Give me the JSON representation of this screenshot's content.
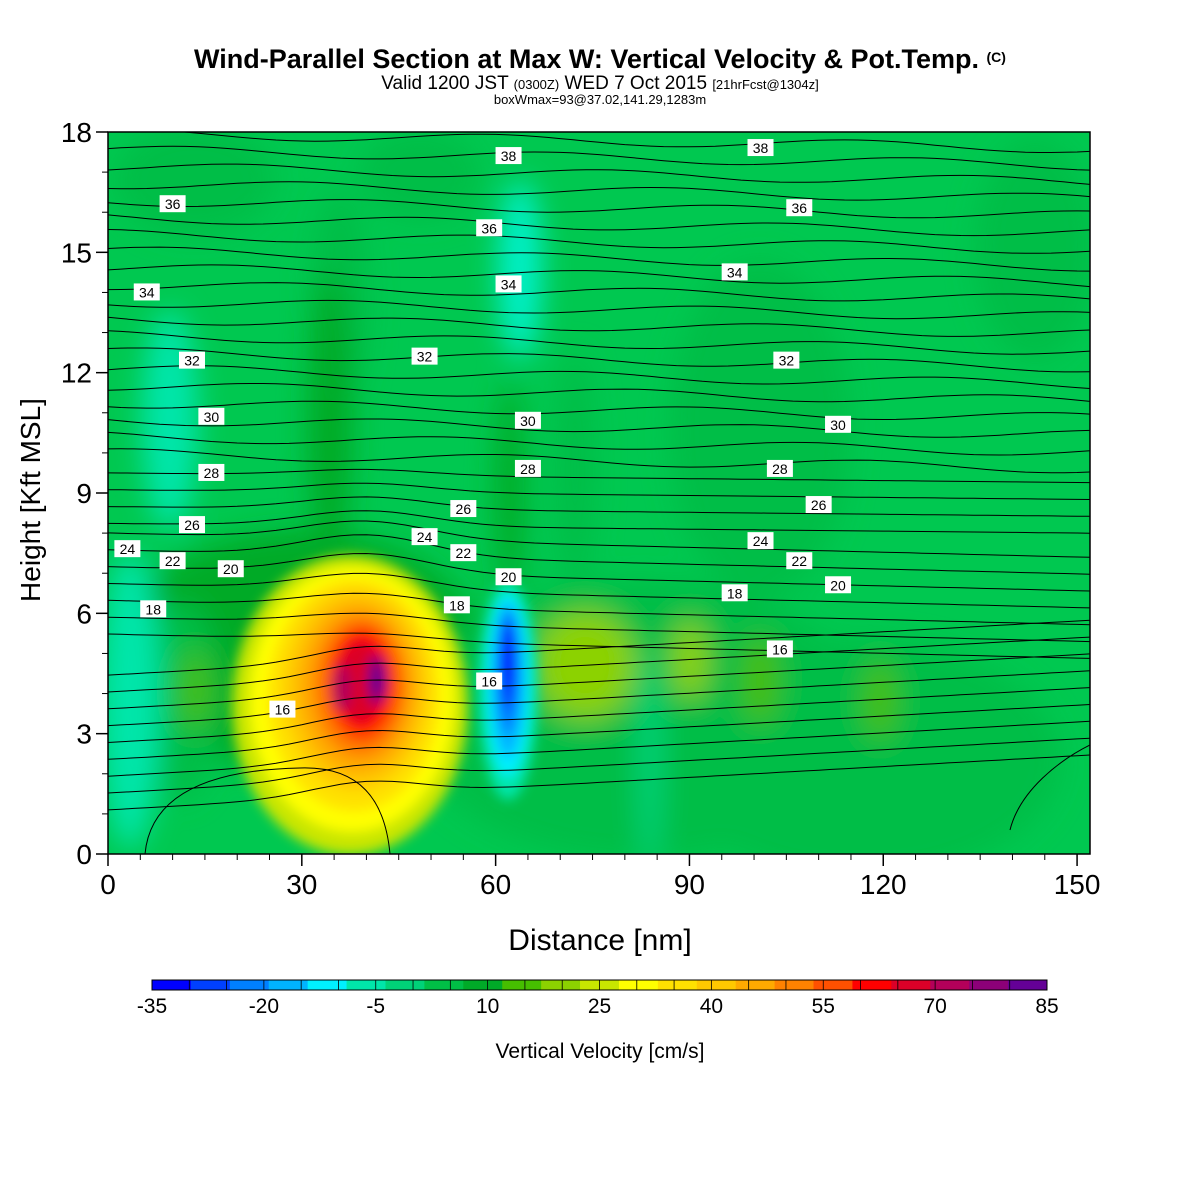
{
  "title": {
    "main": "Wind-Parallel Section at Max W: Vertical Velocity & Pot.Temp.",
    "copyright": "(C)",
    "valid_prefix": "Valid 1200 JST",
    "valid_utc": "(0300Z)",
    "valid_date": "WED 7 Oct 2015",
    "forecast": "[21hrFcst@1304z]",
    "box_info": "boxWmax=93@37.02,141.29,1283m"
  },
  "colors": {
    "background_field": "#00c850",
    "colorbar": [
      "#0000ff",
      "#0040ff",
      "#0080ff",
      "#00b4ff",
      "#00f0ff",
      "#00e6aa",
      "#00d278",
      "#00be46",
      "#00aa28",
      "#46be00",
      "#8cd200",
      "#c8e600",
      "#ffff00",
      "#ffe100",
      "#ffc800",
      "#ffaa00",
      "#ff8200",
      "#ff5000",
      "#ff0000",
      "#dc0028",
      "#b4005a",
      "#8c0078",
      "#640096"
    ]
  },
  "chart_data": {
    "type": "heatmap",
    "description_fields": "filled contours of vertical velocity with potential temperature contour lines",
    "xlabel": "Distance [nm]",
    "ylabel": "Height [Kft MSL]",
    "xlim": [
      0,
      152
    ],
    "ylim": [
      0,
      18
    ],
    "x_ticks": [
      "0",
      "30",
      "60",
      "90",
      "120",
      "150"
    ],
    "y_ticks": [
      "0",
      "3",
      "6",
      "9",
      "12",
      "15",
      "18"
    ],
    "colorbar": {
      "label": "Vertical Velocity [cm/s]",
      "min": -35,
      "max": 85,
      "step": 5,
      "tick_labels": [
        "-35",
        "-20",
        "-5",
        "10",
        "25",
        "40",
        "55",
        "70",
        "85"
      ]
    },
    "features": [
      {
        "type": "updraft",
        "x_center": 40,
        "height_center": 4.5,
        "max_value": 85
      },
      {
        "type": "downdraft",
        "x_center": 62,
        "height_center": 5.0,
        "min_value": -35
      }
    ],
    "contour_labels": [
      {
        "text": "38",
        "x": 62,
        "y": 17.4
      },
      {
        "text": "38",
        "x": 101,
        "y": 17.6
      },
      {
        "text": "36",
        "x": 10,
        "y": 16.2
      },
      {
        "text": "36",
        "x": 59,
        "y": 15.6
      },
      {
        "text": "36",
        "x": 107,
        "y": 16.1
      },
      {
        "text": "34",
        "x": 6,
        "y": 14.0
      },
      {
        "text": "34",
        "x": 62,
        "y": 14.2
      },
      {
        "text": "34",
        "x": 97,
        "y": 14.5
      },
      {
        "text": "32",
        "x": 13,
        "y": 12.3
      },
      {
        "text": "32",
        "x": 49,
        "y": 12.4
      },
      {
        "text": "32",
        "x": 105,
        "y": 12.3
      },
      {
        "text": "30",
        "x": 16,
        "y": 10.9
      },
      {
        "text": "30",
        "x": 65,
        "y": 10.8
      },
      {
        "text": "30",
        "x": 113,
        "y": 10.7
      },
      {
        "text": "28",
        "x": 16,
        "y": 9.5
      },
      {
        "text": "28",
        "x": 65,
        "y": 9.6
      },
      {
        "text": "28",
        "x": 104,
        "y": 9.6
      },
      {
        "text": "26",
        "x": 13,
        "y": 8.2
      },
      {
        "text": "26",
        "x": 55,
        "y": 8.6
      },
      {
        "text": "26",
        "x": 110,
        "y": 8.7
      },
      {
        "text": "24",
        "x": 3,
        "y": 7.6
      },
      {
        "text": "24",
        "x": 49,
        "y": 7.9
      },
      {
        "text": "24",
        "x": 101,
        "y": 7.8
      },
      {
        "text": "22",
        "x": 10,
        "y": 7.3
      },
      {
        "text": "22",
        "x": 55,
        "y": 7.5
      },
      {
        "text": "22",
        "x": 107,
        "y": 7.3
      },
      {
        "text": "20",
        "x": 19,
        "y": 7.1
      },
      {
        "text": "20",
        "x": 62,
        "y": 6.9
      },
      {
        "text": "20",
        "x": 113,
        "y": 6.7
      },
      {
        "text": "18",
        "x": 7,
        "y": 6.1
      },
      {
        "text": "18",
        "x": 54,
        "y": 6.2
      },
      {
        "text": "18",
        "x": 97,
        "y": 6.5
      },
      {
        "text": "16",
        "x": 27,
        "y": 3.6
      },
      {
        "text": "16",
        "x": 59,
        "y": 4.3
      },
      {
        "text": "16",
        "x": 104,
        "y": 5.1
      }
    ]
  }
}
